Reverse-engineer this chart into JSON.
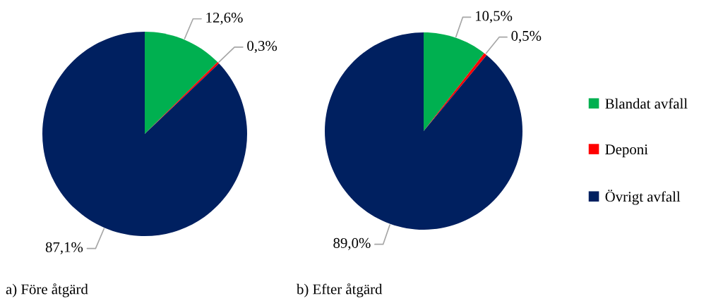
{
  "chart_data": [
    {
      "type": "pie",
      "title": "a) Före åtgärd",
      "categories": [
        "Blandat avfall",
        "Deponi",
        "Övrigt avfall"
      ],
      "values": [
        12.6,
        0.3,
        87.1
      ],
      "colors": [
        "#00b050",
        "#ff0000",
        "#002060"
      ],
      "value_labels": [
        "12,6%",
        "0,3%",
        "87,1%"
      ],
      "legend": "right"
    },
    {
      "type": "pie",
      "title": "b) Efter åtgärd",
      "categories": [
        null,
        null,
        null
      ],
      "values": [
        10.5,
        0.5,
        89.0
      ],
      "colors": [
        "#00b050",
        "#ff0000",
        "#002060"
      ],
      "value_labels": [
        "10,5%",
        "0,5%",
        "89,0%"
      ]
    }
  ]
}
